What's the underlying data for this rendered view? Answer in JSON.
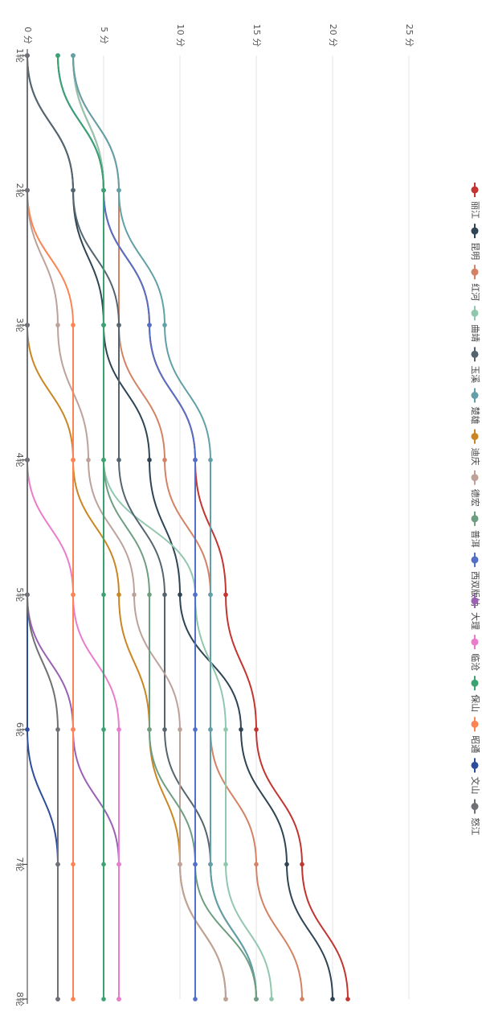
{
  "chart_data": {
    "type": "line",
    "orientation": "rotated-90-clockwise",
    "categories": [
      "1轮",
      "2轮",
      "3轮",
      "4轮",
      "5轮",
      "6轮",
      "7轮",
      "8轮"
    ],
    "value_axis": {
      "min": 0,
      "max": 25,
      "ticks": [
        0,
        5,
        10,
        15,
        20,
        25
      ],
      "tick_labels": [
        "0 分",
        "5 分",
        "10 分",
        "15 分",
        "20 分",
        "25 分"
      ]
    },
    "grid": true,
    "smooth": true,
    "legend_position": "right",
    "series": [
      {
        "name": "丽江",
        "color": "#c23531",
        "values": [
          3,
          5,
          8,
          11,
          13,
          15,
          18,
          21
        ]
      },
      {
        "name": "昆明",
        "color": "#2f4554",
        "values": [
          0,
          3,
          5,
          8,
          10,
          14,
          17,
          20
        ]
      },
      {
        "name": "红河",
        "color": "#d48265",
        "values": [
          3,
          6,
          6,
          9,
          12,
          12,
          15,
          18
        ]
      },
      {
        "name": "曲靖",
        "color": "#91c7ae",
        "values": [
          3,
          5,
          5,
          5,
          11,
          13,
          13,
          16
        ]
      },
      {
        "name": "玉溪",
        "color": "#546570",
        "values": [
          0,
          3,
          6,
          6,
          9,
          9,
          12,
          15
        ]
      },
      {
        "name": "楚雄",
        "color": "#61a0a8",
        "values": [
          3,
          6,
          9,
          12,
          12,
          12,
          12,
          15
        ]
      },
      {
        "name": "迪庆",
        "color": "#ca8622",
        "values": [
          0,
          0,
          0,
          3,
          6,
          8,
          10,
          13
        ]
      },
      {
        "name": "德宏",
        "color": "#bda29a",
        "values": [
          0,
          0,
          2,
          4,
          7,
          10,
          10,
          13
        ]
      },
      {
        "name": "普洱",
        "color": "#6e9e82",
        "values": [
          2,
          5,
          5,
          5,
          8,
          8,
          11,
          15
        ]
      },
      {
        "name": "西双版纳",
        "color": "#5470c6",
        "values": [
          2,
          5,
          8,
          11,
          11,
          11,
          11,
          11
        ]
      },
      {
        "name": "大理",
        "color": "#9a60b4",
        "values": [
          0,
          0,
          0,
          0,
          0,
          3,
          6,
          6
        ]
      },
      {
        "name": "临沧",
        "color": "#ea7ccc",
        "values": [
          0,
          0,
          0,
          0,
          3,
          6,
          6,
          6
        ]
      },
      {
        "name": "保山",
        "color": "#3ba272",
        "values": [
          2,
          5,
          5,
          5,
          5,
          5,
          5,
          5
        ]
      },
      {
        "name": "昭通",
        "color": "#fc8452",
        "values": [
          0,
          0,
          3,
          3,
          3,
          3,
          3,
          3
        ]
      },
      {
        "name": "文山",
        "color": "#2d4d9c",
        "values": [
          0,
          0,
          0,
          0,
          0,
          0,
          2,
          2
        ]
      },
      {
        "name": "怒江",
        "color": "#6e7074",
        "values": [
          0,
          0,
          0,
          0,
          0,
          2,
          2,
          2
        ]
      }
    ]
  }
}
